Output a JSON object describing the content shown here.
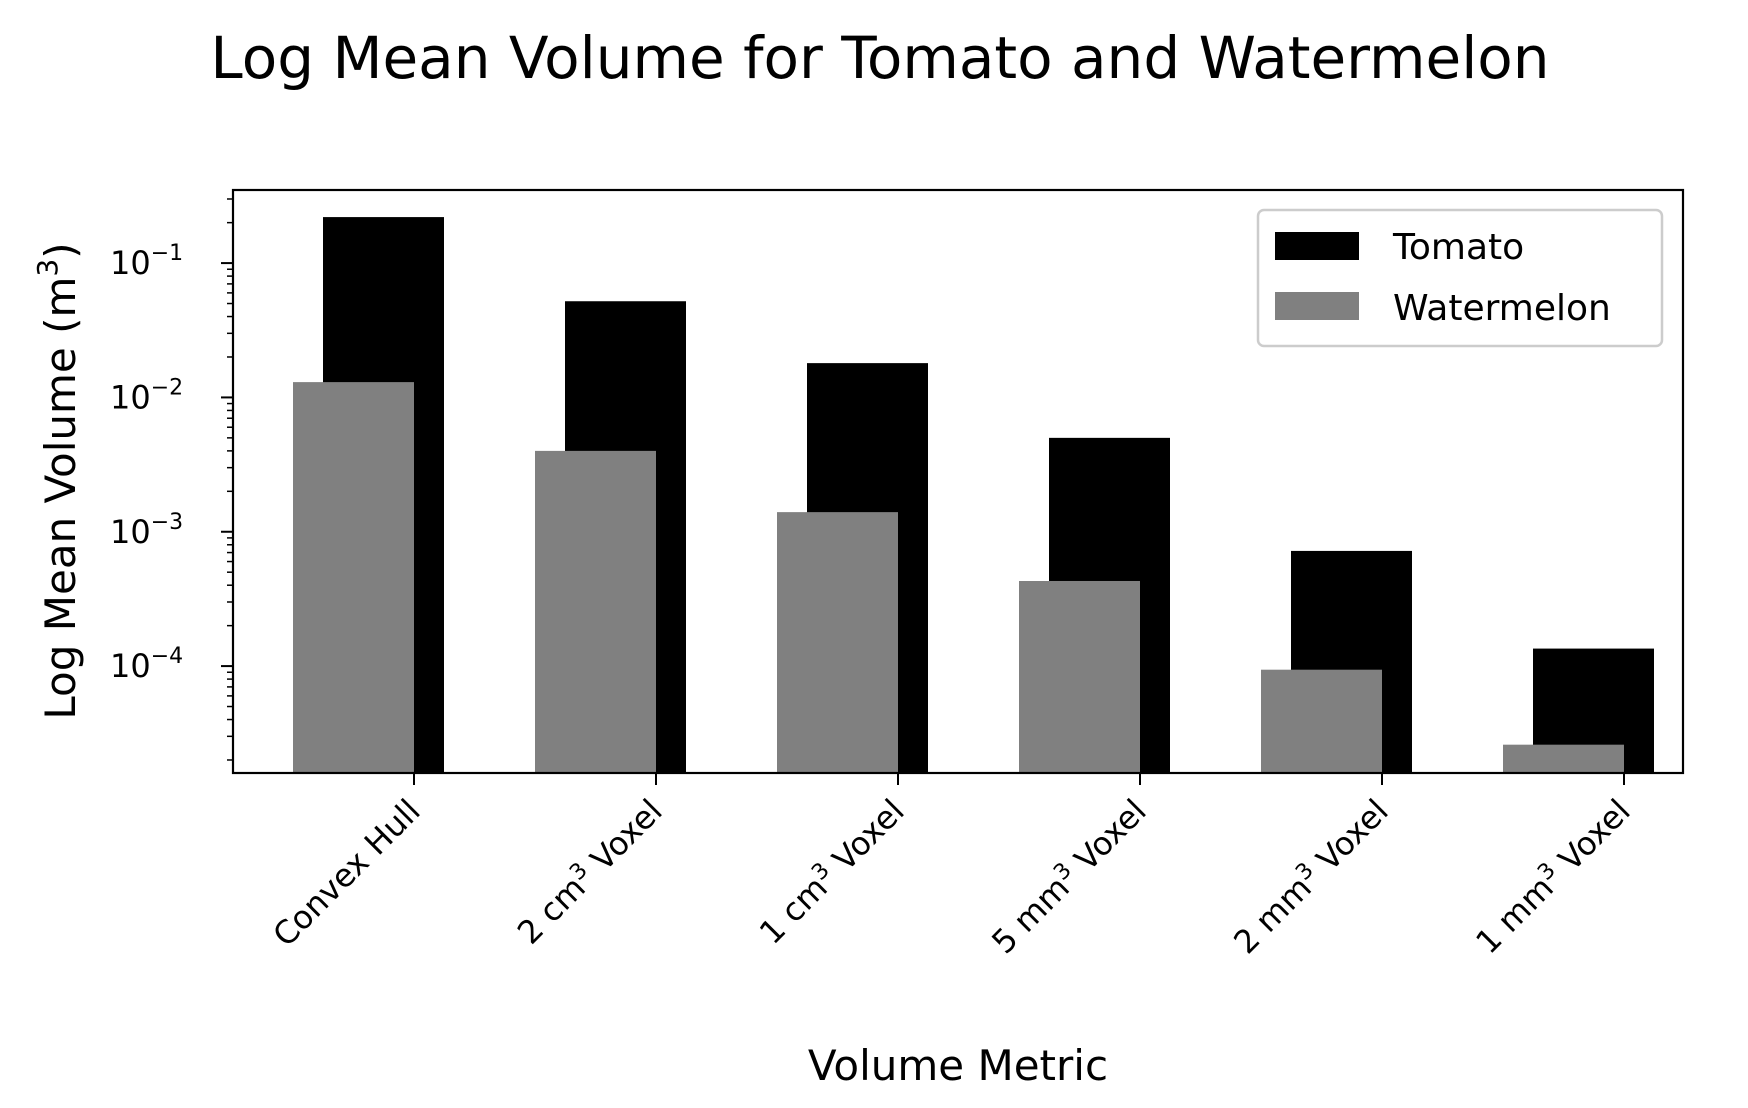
{
  "chart_data": {
    "type": "bar",
    "title": "Log Mean Volume for Tomato and Watermelon",
    "xlabel": "Volume Metric",
    "ylabel": {
      "base": "Log Mean Volume (m",
      "sup": "3",
      "end": ")"
    },
    "categories": [
      {
        "pre": "Convex Hull",
        "sup": "",
        "post": ""
      },
      {
        "pre": "2 cm",
        "sup": "3",
        "post": " Voxel"
      },
      {
        "pre": "1 cm",
        "sup": "3",
        "post": " Voxel"
      },
      {
        "pre": "5 mm",
        "sup": "3",
        "post": " Voxel"
      },
      {
        "pre": "2 mm",
        "sup": "3",
        "post": " Voxel"
      },
      {
        "pre": "1 mm",
        "sup": "3",
        "post": " Voxel"
      }
    ],
    "y_scale": "log",
    "ylim": [
      1.6e-05,
      0.35
    ],
    "yticks": [
      {
        "base": "10",
        "exp": "−1",
        "value": 0.1
      },
      {
        "base": "10",
        "exp": "−2",
        "value": 0.01
      },
      {
        "base": "10",
        "exp": "−3",
        "value": 0.001
      },
      {
        "base": "10",
        "exp": "−4",
        "value": 0.0001
      }
    ],
    "series": [
      {
        "name": "Tomato",
        "color": "#000000",
        "values": [
          0.22,
          0.052,
          0.018,
          0.005,
          0.00072,
          0.000135
        ]
      },
      {
        "name": "Watermelon",
        "color": "#808080",
        "values": [
          0.013,
          0.004,
          0.0014,
          0.00043,
          9.4e-05,
          2.6e-05
        ]
      }
    ],
    "legend_position": "upper-right",
    "grid": false
  }
}
